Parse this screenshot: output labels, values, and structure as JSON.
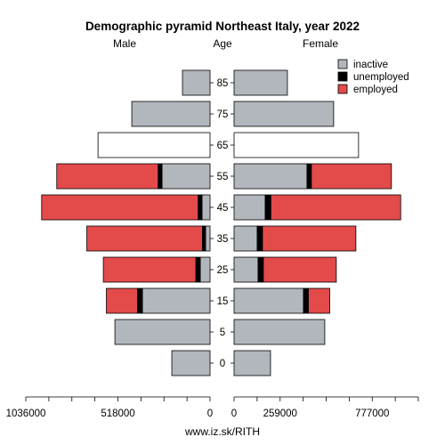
{
  "chart_data": {
    "type": "bar",
    "title": "Demographic pyramid Northeast Italy, year 2022",
    "left_label": "Male",
    "center_label": "Age",
    "right_label": "Female",
    "footer": "www.iz.sk/RITH",
    "age_groups": [
      "85",
      "75",
      "65",
      "55",
      "45",
      "35",
      "25",
      "15",
      "5",
      "0"
    ],
    "male": {
      "inactive": [
        155000,
        440000,
        0,
        270000,
        45000,
        25000,
        55000,
        380000,
        535000,
        215000
      ],
      "unemployed": [
        0,
        0,
        0,
        22000,
        22000,
        18000,
        25000,
        28000,
        0,
        0
      ],
      "employed": [
        0,
        0,
        0,
        570000,
        880000,
        650000,
        520000,
        175000,
        0,
        0
      ],
      "open_total": [
        0,
        0,
        630000,
        0,
        0,
        0,
        0,
        0,
        0,
        0
      ]
    },
    "female": {
      "inactive": [
        300000,
        560000,
        0,
        410000,
        175000,
        130000,
        135000,
        390000,
        510000,
        205000
      ],
      "unemployed": [
        0,
        0,
        0,
        25000,
        32000,
        30000,
        30000,
        28000,
        0,
        0
      ],
      "employed": [
        0,
        0,
        0,
        450000,
        730000,
        525000,
        410000,
        120000,
        0,
        0
      ],
      "open_total": [
        0,
        0,
        700000,
        0,
        0,
        0,
        0,
        0,
        0,
        0
      ]
    },
    "male_axis": {
      "ticks": [
        1036000,
        518000,
        0
      ],
      "tick_labels": [
        "1036000",
        "518000",
        "0"
      ],
      "max": 1036000
    },
    "female_axis": {
      "ticks": [
        0,
        259000,
        777000
      ],
      "tick_labels": [
        "0",
        "259000",
        "777000"
      ],
      "max": 1036000
    },
    "legend": {
      "position": "top-right",
      "entries": [
        {
          "name": "inactive",
          "color": "#b2b7bd"
        },
        {
          "name": "unemployed",
          "color": "#000000"
        },
        {
          "name": "employed",
          "color": "#e34a4a"
        }
      ]
    },
    "colors": {
      "inactive": "#b2b7bd",
      "unemployed": "#000000",
      "employed": "#e34a4a",
      "open": "#ffffff"
    }
  }
}
